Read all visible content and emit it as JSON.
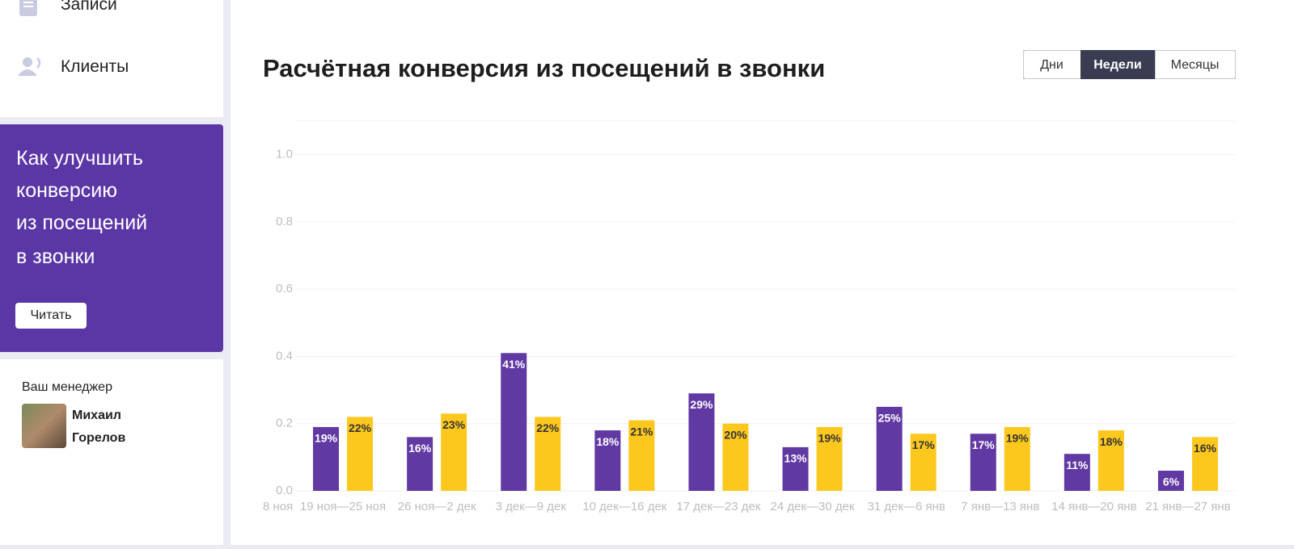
{
  "sidebar": {
    "menu": [
      "Записи",
      "Клиенты"
    ]
  },
  "promo": {
    "lines": [
      "Как улучшить",
      "конверсию",
      "из посещений",
      "в звонки"
    ],
    "button": "Читать"
  },
  "manager": {
    "label": "Ваш менеджер",
    "name": [
      "Михаил",
      "Горелов"
    ]
  },
  "chart_data": {
    "type": "bar",
    "title": "Расчётная конверсия из посещений в звонки",
    "period_buttons": [
      "Дни",
      "Недели",
      "Месяцы"
    ],
    "active_period": "Недели",
    "clipped_label": "8 ноя",
    "categories": [
      "19 ноя—25 ноя",
      "26 ноя—2 дек",
      "3 дек—9 дек",
      "10 дек—16 дек",
      "17 дек—23 дек",
      "24 дек—30 дек",
      "31 дек—6 янв",
      "7 янв—13 янв",
      "14 янв—20 янв",
      "21 янв—27 янв"
    ],
    "series": [
      {
        "color": "#6139a3",
        "values": [
          0.19,
          0.16,
          0.41,
          0.18,
          0.29,
          0.13,
          0.25,
          0.17,
          0.11,
          0.06
        ],
        "value_labels": [
          "19%",
          "16%",
          "41%",
          "18%",
          "29%",
          "13%",
          "25%",
          "17%",
          "11%",
          "6%"
        ]
      },
      {
        "color": "#fcc81e",
        "values": [
          0.22,
          0.23,
          0.22,
          0.21,
          0.2,
          0.19,
          0.17,
          0.19,
          0.18,
          0.16
        ],
        "value_labels": [
          "22%",
          "23%",
          "22%",
          "21%",
          "20%",
          "19%",
          "17%",
          "19%",
          "18%",
          "16%"
        ]
      }
    ],
    "ylim": [
      0,
      1.1
    ],
    "yticks": [
      {
        "value": 0,
        "label": "0.0"
      },
      0.2,
      0.4,
      0.6,
      0.8,
      {
        "value": 1,
        "label": "1.0"
      }
    ],
    "grid": true
  }
}
